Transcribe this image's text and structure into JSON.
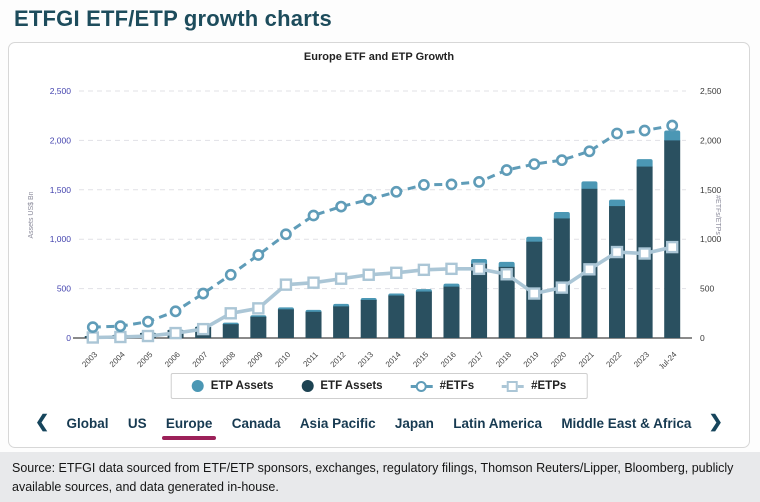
{
  "page_title": "ETFGI ETF/ETP growth charts",
  "chart_data": {
    "type": "combo-bar-line",
    "title": "Europe ETF and ETP Growth",
    "categories": [
      "2003",
      "2004",
      "2005",
      "2006",
      "2007",
      "2008",
      "2009",
      "2010",
      "2011",
      "2012",
      "2013",
      "2014",
      "2015",
      "2016",
      "2017",
      "2018",
      "2019",
      "2020",
      "2021",
      "2022",
      "2023",
      "Jul-24"
    ],
    "tick_step": 500,
    "left_axis": {
      "label": "Assets US$ Bn",
      "max": 2500,
      "ticks": [
        "0",
        "500",
        "1,000",
        "1,500",
        "2,000",
        "2,500"
      ]
    },
    "right_axis": {
      "label": "#ETFs/ETPs",
      "max": 2500,
      "ticks": [
        "0",
        "500",
        "1,000",
        "1,500",
        "2,000",
        "2,500"
      ]
    },
    "grid": "dashed-horizontal",
    "series": [
      {
        "name": "ETF Assets",
        "type": "bar-stack-bottom",
        "axis": "left",
        "color": "#2a5060",
        "values": [
          20,
          30,
          50,
          80,
          110,
          140,
          215,
          290,
          265,
          320,
          385,
          430,
          470,
          520,
          750,
          720,
          975,
          1210,
          1510,
          1335,
          1735,
          2000
        ]
      },
      {
        "name": "ETP Assets",
        "type": "bar-stack-top",
        "axis": "left",
        "color": "#4b97b4",
        "values": [
          2,
          3,
          5,
          5,
          8,
          15,
          15,
          20,
          20,
          25,
          20,
          20,
          25,
          30,
          50,
          50,
          50,
          65,
          75,
          65,
          75,
          100
        ]
      },
      {
        "name": "#ETFs",
        "type": "line-dashed-circle-markers",
        "axis": "right",
        "color": "#5f9cb8",
        "values": [
          110,
          120,
          165,
          270,
          450,
          640,
          840,
          1050,
          1240,
          1330,
          1400,
          1480,
          1550,
          1555,
          1580,
          1700,
          1760,
          1800,
          1890,
          2070,
          2100,
          2150
        ]
      },
      {
        "name": "#ETPs",
        "type": "line-solid-square-markers",
        "axis": "right",
        "color": "#abc6d6",
        "values": [
          5,
          10,
          20,
          50,
          90,
          250,
          300,
          540,
          560,
          600,
          640,
          660,
          690,
          700,
          700,
          645,
          450,
          510,
          695,
          870,
          855,
          920
        ]
      }
    ]
  },
  "legend": {
    "items": [
      {
        "label": "ETP Assets",
        "marker": "dot",
        "color": "#4b97b4"
      },
      {
        "label": "ETF Assets",
        "marker": "dot",
        "color": "#1d4352"
      },
      {
        "label": "#ETFs",
        "marker": "ring",
        "color": "#5f9cb8"
      },
      {
        "label": "#ETPs",
        "marker": "square",
        "color": "#abc6d6"
      }
    ]
  },
  "tabs": {
    "prev_label": "❮",
    "next_label": "❯",
    "accent_color": "#9c2159",
    "items": [
      {
        "label": "Global",
        "active": false
      },
      {
        "label": "US",
        "active": false
      },
      {
        "label": "Europe",
        "active": true
      },
      {
        "label": "Canada",
        "active": false
      },
      {
        "label": "Asia Pacific",
        "active": false
      },
      {
        "label": "Japan",
        "active": false
      },
      {
        "label": "Latin America",
        "active": false
      },
      {
        "label": "Middle East & Africa",
        "active": false
      }
    ]
  },
  "source": {
    "text": "Source: ETFGI data sourced from ETF/ETP sponsors, exchanges, regulatory filings, Thomson Reuters/Lipper, Bloomberg, publicly available sources, and data generated in-house."
  }
}
